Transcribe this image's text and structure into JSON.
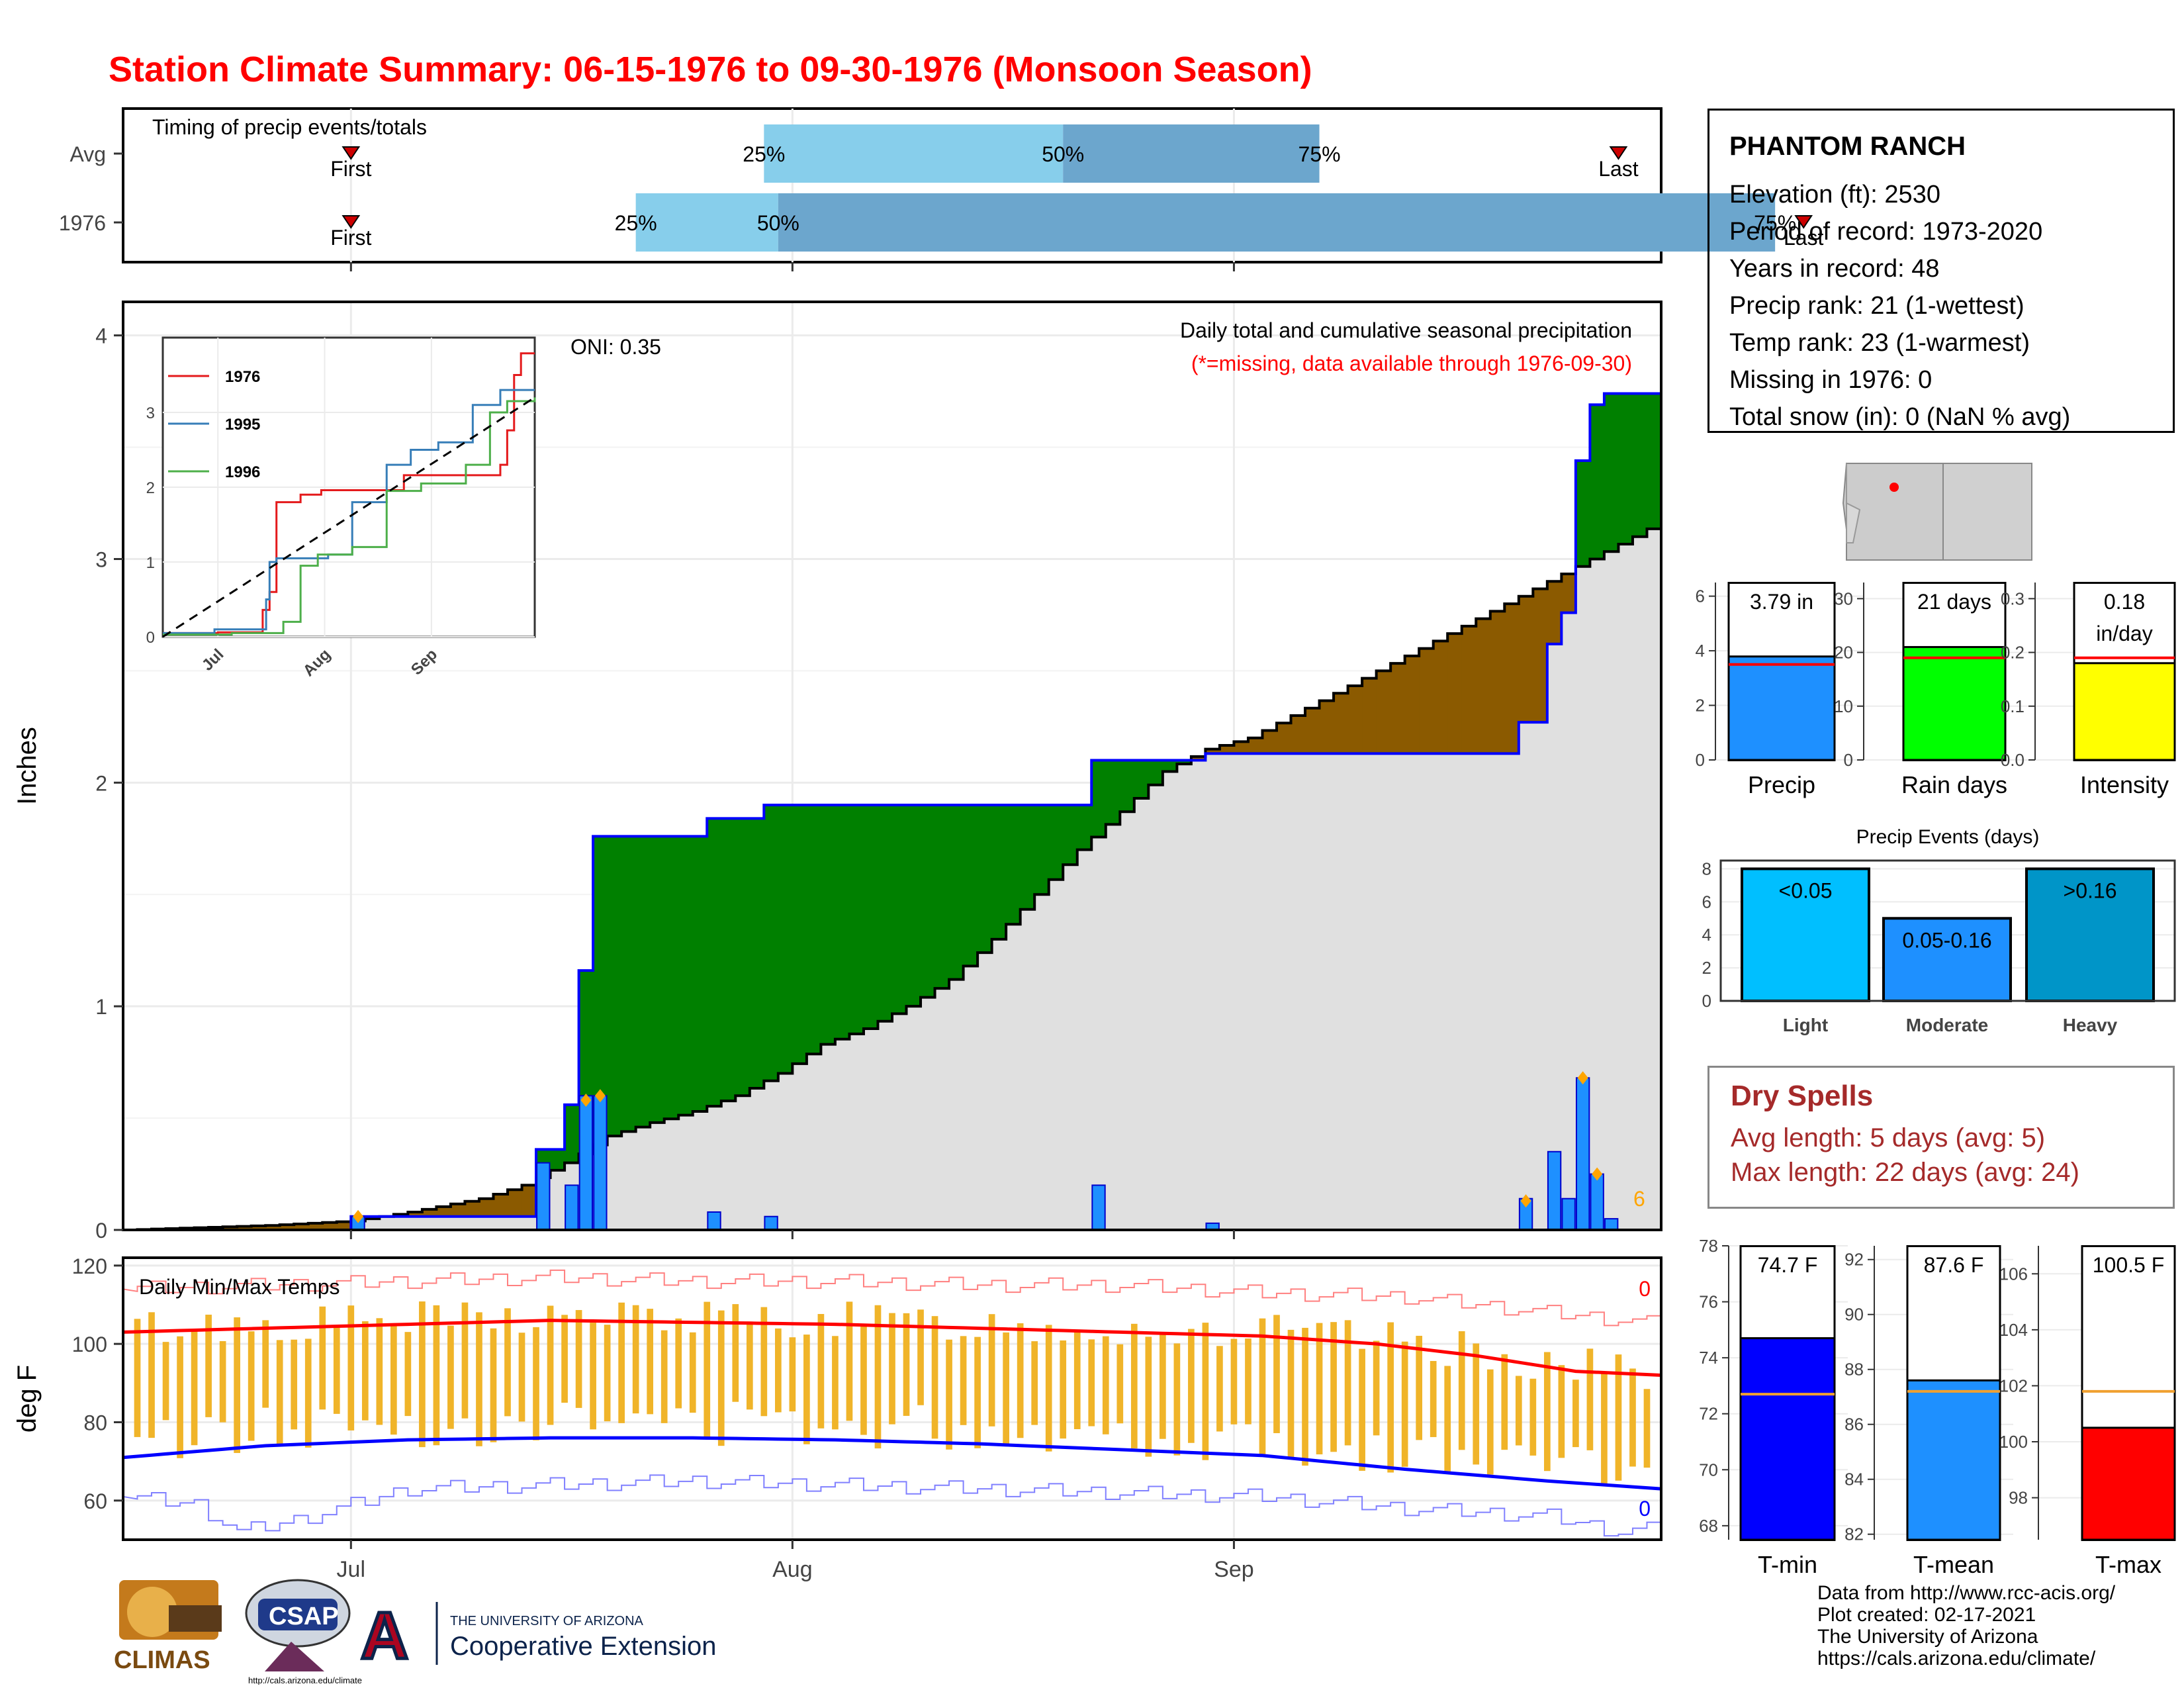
{
  "title": "Station Climate Summary: 06-15-1976 to 09-30-1976 (Monsoon Season)",
  "colors": {
    "title": "#ff0000",
    "above_fill": "#008000",
    "below_fill": "#8b5a00",
    "avg_fill": "#e0e0e0",
    "cum_line": "#0000ff",
    "bar_fill": "#1e90ff",
    "marker": "#ffa500",
    "tmax": "#ff0000",
    "tmin": "#0000ff",
    "range_bar": "#f0b429",
    "q_light": "#87ceeb",
    "q_dark": "#6ca6cd"
  },
  "station": {
    "name": "PHANTOM RANCH",
    "lines": [
      "Elevation (ft): 2530",
      "Period of record: 1973-2020",
      "Years in record: 48",
      "Precip rank: 21 (1-wettest)",
      "Temp rank: 23 (1-warmest)",
      "Missing in 1976: 0",
      "Total snow (in): 0 (NaN % avg)"
    ]
  },
  "dry_spells": {
    "title": "Dry Spells",
    "avg": "Avg length: 5 days (avg: 5)",
    "max": "Max length: 22 days (avg: 24)"
  },
  "credits": [
    "Data from http://www.rcc-acis.org/",
    "Plot created: 02-17-2021",
    "The University of Arizona",
    "https://cals.arizona.edu/climate/"
  ],
  "logos": {
    "climas": "CLIMAS",
    "csap": "CSAP",
    "csap_url": "http://cals.arizona.edu/climate",
    "ua_line1": "THE UNIVERSITY OF ARIZONA",
    "ua_line2": "Cooperative Extension"
  },
  "chart_data": [
    {
      "id": "timing",
      "type": "bar",
      "title": "Timing of precip events/totals",
      "rows": [
        "Avg",
        "1976"
      ],
      "labels": {
        "first": "First",
        "last": "Last",
        "q25": "25%",
        "q50": "50%",
        "q75": "75%"
      },
      "avg": {
        "first": 16,
        "q25": 45,
        "q50": 66,
        "q75": 84,
        "last": 105
      },
      "year": {
        "first": 16,
        "q25": 36,
        "q50": 46,
        "q75": 116,
        "last": 118
      }
    },
    {
      "id": "precip",
      "type": "area",
      "ylabel": "Inches",
      "ylim": [
        0,
        4.15
      ],
      "yticks": [
        0,
        1,
        2,
        3,
        4
      ],
      "x_months": [
        "Jul",
        "Aug",
        "Sep"
      ],
      "day_of_month_start": [
        16,
        47,
        78
      ],
      "n_days": 108,
      "annotation": "Daily total and cumulative seasonal precipitation",
      "note": "(*=missing, data available through 1976-09-30)",
      "oni": "ONI: 0.35",
      "count_label": "6",
      "avg_cum_points": [
        [
          0,
          0
        ],
        [
          5,
          0.01
        ],
        [
          10,
          0.02
        ],
        [
          16,
          0.04
        ],
        [
          20,
          0.08
        ],
        [
          25,
          0.14
        ],
        [
          28,
          0.2
        ],
        [
          31,
          0.3
        ],
        [
          34,
          0.42
        ],
        [
          37,
          0.48
        ],
        [
          40,
          0.53
        ],
        [
          43,
          0.6
        ],
        [
          46,
          0.7
        ],
        [
          49,
          0.83
        ],
        [
          52,
          0.9
        ],
        [
          55,
          1.0
        ],
        [
          58,
          1.12
        ],
        [
          61,
          1.3
        ],
        [
          64,
          1.5
        ],
        [
          67,
          1.7
        ],
        [
          70,
          1.87
        ],
        [
          73,
          2.05
        ],
        [
          76,
          2.15
        ],
        [
          79,
          2.2
        ],
        [
          82,
          2.3
        ],
        [
          85,
          2.4
        ],
        [
          88,
          2.5
        ],
        [
          91,
          2.6
        ],
        [
          94,
          2.7
        ],
        [
          97,
          2.8
        ],
        [
          100,
          2.9
        ],
        [
          103,
          3.0
        ],
        [
          106,
          3.1
        ],
        [
          108,
          3.17
        ]
      ],
      "daily": [
        [
          16,
          0.06
        ],
        [
          29,
          0.3
        ],
        [
          31,
          0.2
        ],
        [
          32,
          0.6
        ],
        [
          33,
          0.6
        ],
        [
          41,
          0.08
        ],
        [
          45,
          0.06
        ],
        [
          68,
          0.2
        ],
        [
          76,
          0.03
        ],
        [
          98,
          0.14
        ],
        [
          100,
          0.35
        ],
        [
          101,
          0.14
        ],
        [
          102,
          0.68
        ],
        [
          103,
          0.25
        ],
        [
          104,
          0.05
        ]
      ],
      "missing_markers": [
        [
          16,
          0.06
        ],
        [
          32,
          0.58
        ],
        [
          33,
          0.6
        ],
        [
          98,
          0.13
        ],
        [
          102,
          0.68
        ],
        [
          103,
          0.25
        ]
      ],
      "inset": {
        "series": [
          {
            "name": "1976",
            "color": "#e41a1c",
            "points": [
              [
                0,
                0.05
              ],
              [
                16,
                0.06
              ],
              [
                29,
                0.36
              ],
              [
                31,
                0.6
              ],
              [
                33,
                1.8
              ],
              [
                36,
                1.8
              ],
              [
                40,
                1.9
              ],
              [
                46,
                1.96
              ],
              [
                68,
                1.96
              ],
              [
                70,
                2.16
              ],
              [
                98,
                2.3
              ],
              [
                100,
                2.76
              ],
              [
                102,
                3.5
              ],
              [
                104,
                3.79
              ],
              [
                108,
                3.79
              ]
            ]
          },
          {
            "name": "1995",
            "color": "#377eb8",
            "points": [
              [
                0,
                0.05
              ],
              [
                15,
                0.1
              ],
              [
                28,
                0.1
              ],
              [
                30,
                0.5
              ],
              [
                31,
                1.0
              ],
              [
                33,
                1.05
              ],
              [
                48,
                1.1
              ],
              [
                55,
                1.8
              ],
              [
                65,
                2.3
              ],
              [
                72,
                2.5
              ],
              [
                80,
                2.6
              ],
              [
                90,
                3.1
              ],
              [
                98,
                3.3
              ],
              [
                108,
                3.3
              ]
            ]
          },
          {
            "name": "1996",
            "color": "#4daf4a",
            "points": [
              [
                0,
                0.03
              ],
              [
                20,
                0.05
              ],
              [
                35,
                0.2
              ],
              [
                40,
                0.95
              ],
              [
                45,
                1.1
              ],
              [
                55,
                1.2
              ],
              [
                65,
                1.95
              ],
              [
                75,
                2.05
              ],
              [
                88,
                2.3
              ],
              [
                95,
                3.0
              ],
              [
                100,
                3.15
              ],
              [
                108,
                3.2
              ]
            ]
          }
        ],
        "avg_line": [
          [
            0,
            0
          ],
          [
            108,
            3.2
          ]
        ],
        "yticks": [
          0,
          1,
          2,
          3
        ],
        "x_months": [
          "Jul",
          "Aug",
          "Sep"
        ]
      }
    },
    {
      "id": "temps",
      "type": "line",
      "title": "Daily Min/Max Temps",
      "ylabel": "deg F",
      "ylim": [
        50,
        122
      ],
      "yticks": [
        60,
        80,
        100,
        120
      ],
      "x_months": [
        "Jul",
        "Aug",
        "Sep"
      ],
      "count_high": "0",
      "count_low": "0",
      "tmax_avg": [
        [
          0,
          103
        ],
        [
          10,
          104
        ],
        [
          20,
          105
        ],
        [
          30,
          106
        ],
        [
          40,
          105.5
        ],
        [
          50,
          105
        ],
        [
          60,
          104
        ],
        [
          70,
          103
        ],
        [
          80,
          102
        ],
        [
          88,
          100
        ],
        [
          95,
          97
        ],
        [
          102,
          93
        ],
        [
          108,
          92
        ]
      ],
      "tmin_avg": [
        [
          0,
          71
        ],
        [
          10,
          74
        ],
        [
          20,
          75.5
        ],
        [
          30,
          76
        ],
        [
          40,
          76
        ],
        [
          50,
          75.5
        ],
        [
          60,
          74.5
        ],
        [
          70,
          73
        ],
        [
          80,
          71.5
        ],
        [
          90,
          68
        ],
        [
          100,
          65
        ],
        [
          108,
          63
        ]
      ],
      "tmax_record": [
        [
          0,
          114
        ],
        [
          10,
          115
        ],
        [
          20,
          116
        ],
        [
          30,
          117
        ],
        [
          40,
          116
        ],
        [
          50,
          116
        ],
        [
          60,
          115
        ],
        [
          70,
          115
        ],
        [
          80,
          113
        ],
        [
          90,
          112
        ],
        [
          100,
          108
        ],
        [
          108,
          105
        ]
      ],
      "tmin_record": [
        [
          0,
          61
        ],
        [
          5,
          59
        ],
        [
          8,
          52
        ],
        [
          12,
          55
        ],
        [
          20,
          63
        ],
        [
          30,
          64
        ],
        [
          40,
          65
        ],
        [
          50,
          64
        ],
        [
          60,
          63
        ],
        [
          70,
          62
        ],
        [
          80,
          61
        ],
        [
          90,
          58
        ],
        [
          100,
          56
        ],
        [
          105,
          52
        ],
        [
          108,
          53
        ]
      ],
      "range_seed": 13
    },
    {
      "id": "season_bars",
      "type": "bar",
      "panels": [
        {
          "name": "Precip",
          "value": 3.79,
          "avg": 3.5,
          "label": "3.79 in",
          "ylim": [
            0,
            6.5
          ],
          "yticks": [
            0,
            2,
            4,
            6
          ],
          "color": "#1e90ff",
          "avg_color": "#ff0000"
        },
        {
          "name": "Rain days",
          "value": 21,
          "avg": 19,
          "label": "21 days",
          "ylim": [
            0,
            33
          ],
          "yticks": [
            0,
            10,
            20,
            30
          ],
          "color": "#00ff00",
          "avg_color": "#ff0000"
        },
        {
          "name": "Intensity",
          "value": 0.18,
          "avg": 0.19,
          "label": "0.18",
          "label2": "in/day",
          "ylim": [
            0,
            0.33
          ],
          "yticks": [
            "0.0",
            "0.1",
            "0.2",
            "0.3"
          ],
          "color": "#ffff00",
          "avg_color": "#ff0000"
        }
      ]
    },
    {
      "id": "precip_events",
      "type": "bar",
      "title": "Precip Events (days)",
      "categories": [
        "Light",
        "Moderate",
        "Heavy"
      ],
      "bar_labels": [
        "<0.05",
        "0.05-0.16",
        ">0.16"
      ],
      "values": [
        8,
        5,
        8
      ],
      "colors": [
        "#00bfff",
        "#1e90ff",
        "#0095c8"
      ],
      "ylim": [
        0,
        8.5
      ],
      "yticks": [
        0,
        2,
        4,
        6,
        8
      ]
    },
    {
      "id": "temp_bars",
      "type": "bar",
      "panels": [
        {
          "name": "T-min",
          "value": 74.7,
          "avg": 72.7,
          "label": "74.7 F",
          "ylim": [
            67.5,
            78
          ],
          "yticks": [
            68,
            70,
            72,
            74,
            76,
            78
          ],
          "color": "#0000ff"
        },
        {
          "name": "T-mean",
          "value": 87.6,
          "avg": 87.2,
          "label": "87.6 F",
          "ylim": [
            81.8,
            92.5
          ],
          "yticks": [
            82,
            84,
            86,
            88,
            90,
            92
          ],
          "color": "#1e90ff"
        },
        {
          "name": "T-max",
          "value": 100.5,
          "avg": 101.8,
          "label": "100.5 F",
          "ylim": [
            96.5,
            107
          ],
          "yticks": [
            98,
            100,
            102,
            104,
            106
          ],
          "color": "#ff0000"
        }
      ]
    }
  ]
}
